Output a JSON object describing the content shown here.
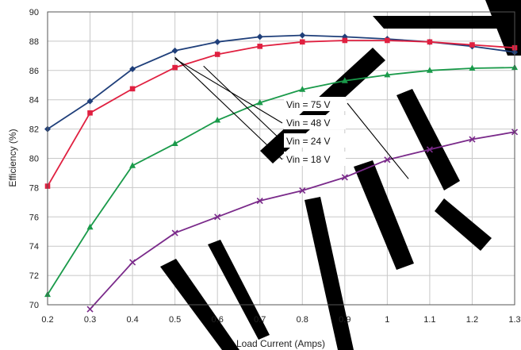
{
  "chart_data": {
    "type": "line",
    "xlabel": "Load Current (Amps)",
    "ylabel": "Efficiency (%)",
    "xlim": [
      0.2,
      1.3
    ],
    "ylim": [
      70,
      90
    ],
    "x_ticks": [
      "0.2",
      "0.3",
      "0.4",
      "0.5",
      "0.6",
      "0.7",
      "0.8",
      "0.9",
      "1",
      "1.1",
      "1.2",
      "1.3"
    ],
    "y_ticks": [
      "70",
      "72",
      "74",
      "76",
      "78",
      "80",
      "82",
      "84",
      "86",
      "88",
      "90"
    ],
    "grid": true,
    "watermark_colors": [
      "#000000"
    ],
    "series": [
      {
        "name": "Vin = 18 V",
        "color": "#1f3f7a",
        "marker": "diamond",
        "x": [
          0.2,
          0.3,
          0.4,
          0.5,
          0.6,
          0.7,
          0.8,
          0.9,
          1.0,
          1.1,
          1.2,
          1.3
        ],
        "y": [
          82.0,
          83.9,
          86.1,
          87.35,
          87.95,
          88.3,
          88.4,
          88.3,
          88.15,
          87.95,
          87.65,
          87.25
        ]
      },
      {
        "name": "Vin = 24 V",
        "color": "#e02040",
        "marker": "square",
        "x": [
          0.2,
          0.3,
          0.4,
          0.5,
          0.6,
          0.7,
          0.8,
          0.9,
          1.0,
          1.1,
          1.2,
          1.3
        ],
        "y": [
          78.1,
          83.1,
          84.75,
          86.2,
          87.1,
          87.65,
          87.95,
          88.05,
          88.05,
          87.95,
          87.75,
          87.55
        ]
      },
      {
        "name": "Vin = 48 V",
        "color": "#1a9a4a",
        "marker": "triangle",
        "x": [
          0.2,
          0.3,
          0.4,
          0.5,
          0.6,
          0.7,
          0.8,
          0.9,
          1.0,
          1.1,
          1.2,
          1.3
        ],
        "y": [
          70.7,
          75.3,
          79.5,
          81.0,
          82.6,
          83.8,
          84.7,
          85.3,
          85.7,
          86.0,
          86.15,
          86.2
        ]
      },
      {
        "name": "Vin = 75 V",
        "color": "#7a2a8a",
        "marker": "x",
        "x": [
          0.3,
          0.4,
          0.5,
          0.6,
          0.7,
          0.8,
          0.9,
          1.0,
          1.1,
          1.2,
          1.3
        ],
        "y": [
          69.7,
          72.9,
          74.9,
          76.0,
          77.1,
          77.8,
          78.7,
          79.9,
          80.6,
          81.3,
          81.8
        ]
      }
    ],
    "annotations": [
      {
        "text": "Vin = 75 V",
        "series": "Vin = 75 V"
      },
      {
        "text": "Vin = 48 V",
        "series": "Vin = 48 V"
      },
      {
        "text": "Vin = 24 V",
        "series": "Vin = 24 V"
      },
      {
        "text": "Vin = 18 V",
        "series": "Vin = 18 V"
      }
    ]
  }
}
